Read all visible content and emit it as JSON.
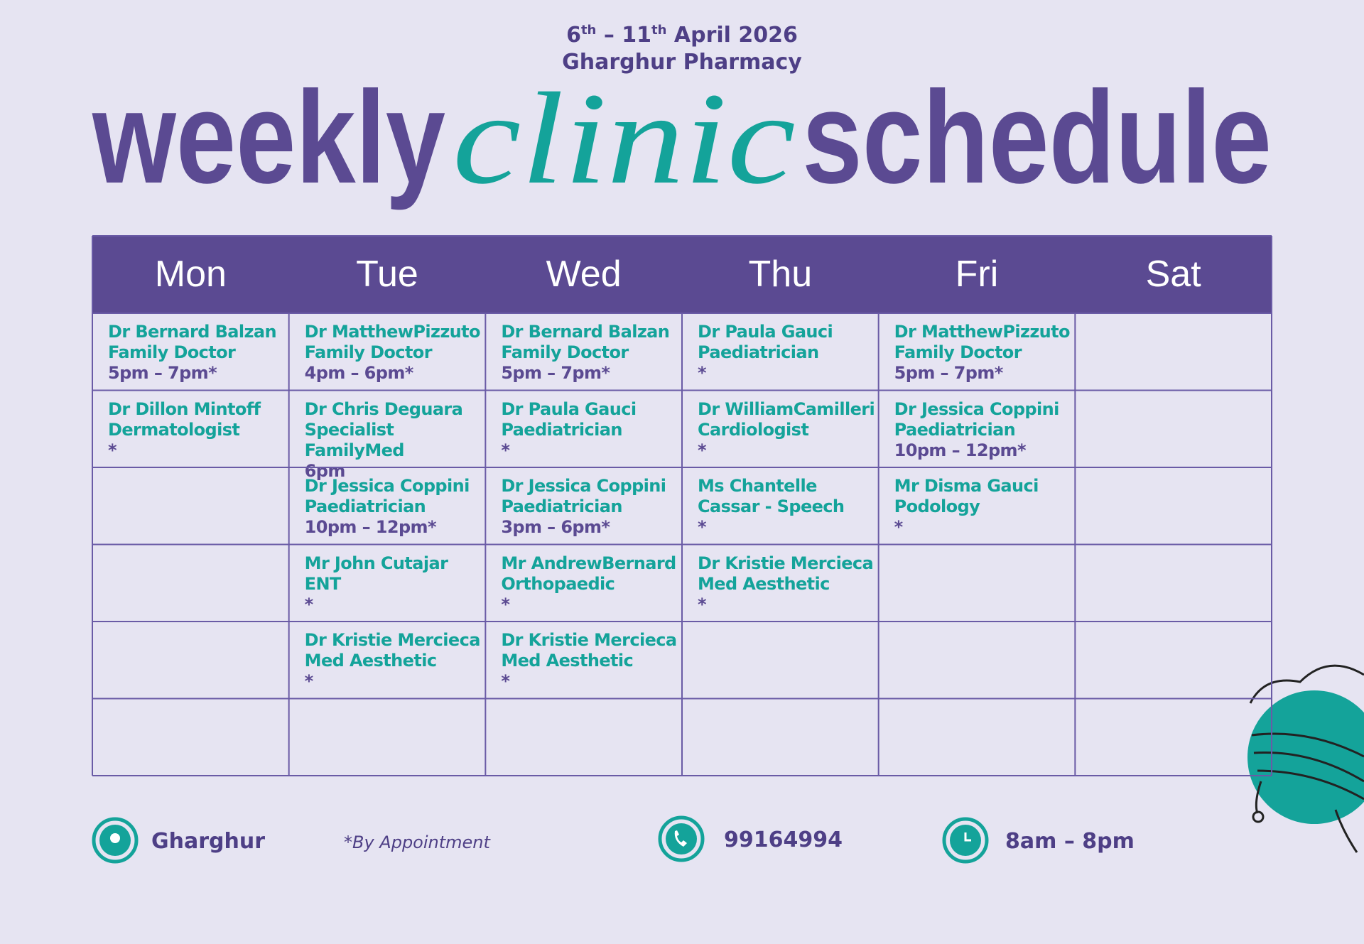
{
  "header": {
    "date": {
      "start": "6",
      "start_sup": "th",
      "dash": "–",
      "end": "11",
      "end_sup": "th",
      "month_year": "April 2026"
    },
    "subtitle": "Gharghur Pharmacy",
    "title": {
      "word1": "weekly",
      "word2": "clinic",
      "word3": "schedule"
    }
  },
  "table": {
    "days": [
      "Mon",
      "Tue",
      "Wed",
      "Thu",
      "Fri",
      "Sat"
    ],
    "rows": [
      [
        {
          "name": "Dr Bernard Balzan",
          "role": "Family Doctor",
          "time": "5pm – 7pm*"
        },
        {
          "name": "Dr MatthewPizzuto",
          "role": "Family Doctor",
          "time": "4pm – 6pm*"
        },
        {
          "name": "Dr Bernard Balzan",
          "role": "Family Doctor",
          "time": "5pm – 7pm*"
        },
        {
          "name": "Dr Paula Gauci",
          "role": "Paediatrician",
          "time": "*"
        },
        {
          "name": "Dr MatthewPizzuto",
          "role": "Family Doctor",
          "time": "5pm – 7pm*"
        },
        null
      ],
      [
        {
          "name": "Dr Dillon Mintoff",
          "role": "Dermatologist",
          "time": "*"
        },
        {
          "name": "Dr Chris Deguara",
          "role": "Specialist FamilyMed",
          "time": "6pm"
        },
        {
          "name": "Dr Paula Gauci",
          "role": "Paediatrician",
          "time": "*"
        },
        {
          "name": "Dr WilliamCamilleri",
          "role": "Cardiologist",
          "time": "*"
        },
        {
          "name": "Dr Jessica Coppini",
          "role": "Paediatrician",
          "time": "10pm – 12pm*"
        },
        null
      ],
      [
        null,
        {
          "name": "Dr Jessica Coppini",
          "role": "Paediatrician",
          "time": "10pm – 12pm*"
        },
        {
          "name": "Dr Jessica Coppini",
          "role": "Paediatrician",
          "time": "3pm – 6pm*"
        },
        {
          "name": "Ms Chantelle",
          "role": "Cassar - Speech",
          "time": "*"
        },
        {
          "name": "Mr Disma Gauci",
          "role": "Podology",
          "time": "*"
        },
        null
      ],
      [
        null,
        {
          "name": "Mr John Cutajar",
          "role": "ENT",
          "time": "*"
        },
        {
          "name": "Mr AndrewBernard",
          "role": "Orthopaedic",
          "time": "*"
        },
        {
          "name": "Dr Kristie Mercieca",
          "role": "Med Aesthetic",
          "time": "*"
        },
        null,
        null
      ],
      [
        null,
        {
          "name": "Dr Kristie Mercieca",
          "role": "Med Aesthetic",
          "time": "*"
        },
        {
          "name": "Dr Kristie Mercieca",
          "role": "Med Aesthetic",
          "time": "*"
        },
        null,
        null,
        null
      ],
      [
        null,
        null,
        null,
        null,
        null,
        null
      ]
    ]
  },
  "footer": {
    "location": "Gharghur",
    "note": "*By Appointment",
    "phone": "99164994",
    "hours": "8am – 8pm"
  }
}
